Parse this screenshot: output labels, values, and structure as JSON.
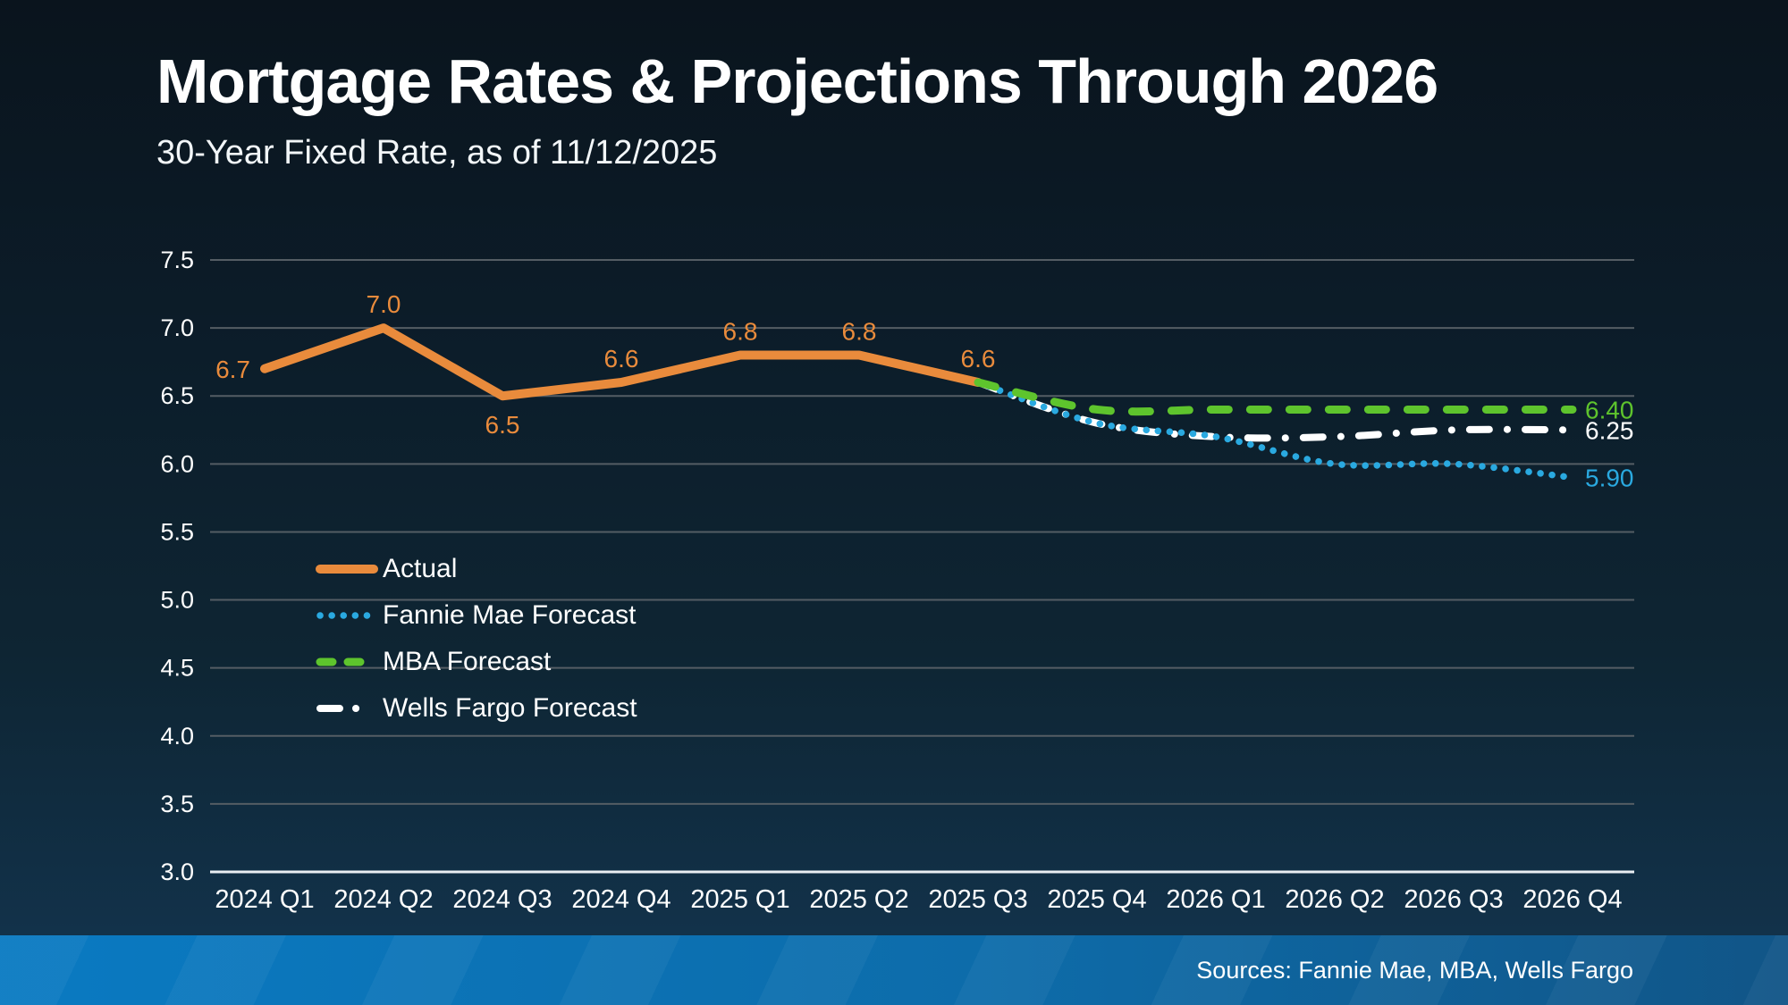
{
  "header": {
    "title": "Mortgage Rates & Projections Through 2026",
    "subtitle": "30-Year Fixed Rate, as of 11/12/2025"
  },
  "footer": {
    "sources": "Sources: Fannie Mae, MBA, Wells Fargo"
  },
  "colors": {
    "actual": "#E98B3C",
    "fannie_mae": "#2AA9E0",
    "mba": "#5EC42D",
    "wells_fargo": "#FFFFFF",
    "gridline": "#545d64",
    "axis_line": "#E9EEF2",
    "background_top": "#0a141d",
    "background_bottom": "#133550",
    "footer_bar_left": "#0a7ac2",
    "footer_bar_right": "#115587"
  },
  "chart_data": {
    "type": "line",
    "title": "Mortgage Rates & Projections Through 2026",
    "subtitle": "30-Year Fixed Rate, as of 11/12/2025",
    "xlabel": "",
    "ylabel": "",
    "grid": true,
    "legend_position": "middle-left",
    "ylim": [
      3.0,
      7.5
    ],
    "ytick_labels": [
      "3.0",
      "3.5",
      "4.0",
      "4.5",
      "5.0",
      "5.5",
      "6.0",
      "6.5",
      "7.0",
      "7.5"
    ],
    "categories": [
      "2024 Q1",
      "2024 Q2",
      "2024 Q3",
      "2024 Q4",
      "2025 Q1",
      "2025 Q2",
      "2025 Q3",
      "2025 Q4",
      "2026 Q1",
      "2026 Q2",
      "2026 Q3",
      "2026 Q4"
    ],
    "series": [
      {
        "name": "Actual",
        "color": "#E98B3C",
        "style": "solid",
        "values": [
          6.7,
          7.0,
          6.5,
          6.6,
          6.8,
          6.8,
          6.6,
          null,
          null,
          null,
          null,
          null
        ],
        "point_labels": [
          "6.7",
          "7.0",
          "6.5",
          "6.6",
          "6.8",
          "6.8",
          "6.6",
          null,
          null,
          null,
          null,
          null
        ],
        "label_positions": [
          "left",
          "above",
          "below",
          "above",
          "above",
          "above",
          "above",
          null,
          null,
          null,
          null,
          null
        ]
      },
      {
        "name": "Fannie Mae Forecast",
        "color": "#2AA9E0",
        "style": "dotted",
        "values": [
          null,
          null,
          null,
          null,
          null,
          null,
          6.6,
          6.3,
          6.2,
          6.0,
          6.0,
          5.9
        ],
        "end_label": "5.90"
      },
      {
        "name": "MBA Forecast",
        "color": "#5EC42D",
        "style": "dashed",
        "values": [
          null,
          null,
          null,
          null,
          null,
          null,
          6.6,
          6.4,
          6.4,
          6.4,
          6.4,
          6.4
        ],
        "end_label": "6.40"
      },
      {
        "name": "Wells Fargo Forecast",
        "color": "#FFFFFF",
        "style": "dashdot",
        "values": [
          null,
          null,
          null,
          null,
          null,
          null,
          6.6,
          6.3,
          6.2,
          6.2,
          6.25,
          6.25
        ],
        "end_label": "6.25"
      }
    ]
  }
}
